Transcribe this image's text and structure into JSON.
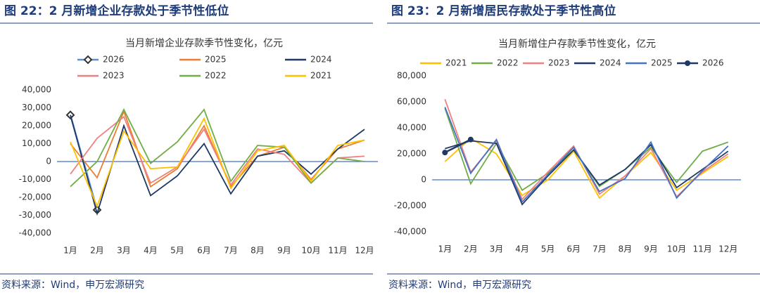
{
  "chart_data": [
    {
      "type": "line",
      "heading": "图 22：2 月新增企业存款处于季节性低位",
      "title": "当月新增企业存款季节性变化，亿元",
      "source": "资料来源：Wind，申万宏源研究",
      "categories": [
        "1月",
        "2月",
        "3月",
        "4月",
        "5月",
        "6月",
        "7月",
        "8月",
        "9月",
        "10月",
        "11月",
        "12月"
      ],
      "ylim": [
        -40000,
        40000
      ],
      "yticks": [
        {
          "value": -40000,
          "label": "-40,000"
        },
        {
          "value": -30000,
          "label": "-30,000"
        },
        {
          "value": -20000,
          "label": "-20,000"
        },
        {
          "value": -10000,
          "label": "-10,000"
        },
        0,
        {
          "value": 10000,
          "label": "10,000"
        },
        {
          "value": 20000,
          "label": "20,000"
        },
        {
          "value": 30000,
          "label": "30,000"
        },
        {
          "value": 40000,
          "label": "40,000"
        }
      ],
      "grid": false,
      "legend": "top",
      "series": [
        {
          "name": "2026",
          "color": "#5b8fd0",
          "marker": "diamond",
          "values": [
            26000,
            -27000,
            null,
            null,
            null,
            null,
            null,
            null,
            null,
            null,
            null,
            null
          ]
        },
        {
          "name": "2025",
          "color": "#ed7d31",
          "values": [
            10000,
            -9000,
            28000,
            -14000,
            -4000,
            20000,
            -14000,
            3000,
            8000,
            -10000,
            7000,
            12000
          ]
        },
        {
          "name": "2024",
          "color": "#1f3864",
          "values": [
            26000,
            -29000,
            20000,
            -19000,
            -8000,
            10000,
            -18000,
            3000,
            6000,
            -7000,
            7000,
            18000
          ]
        },
        {
          "name": "2023",
          "color": "#f08080",
          "values": [
            -7000,
            13000,
            25000,
            -12000,
            -3000,
            18000,
            -13000,
            7000,
            4000,
            -12000,
            2000,
            3000
          ]
        },
        {
          "name": "2022",
          "color": "#70ad47",
          "values": [
            -14000,
            0,
            29000,
            -1000,
            11000,
            29000,
            -11000,
            9000,
            8000,
            -12000,
            2000,
            0
          ]
        },
        {
          "name": "2021",
          "color": "#ffc000",
          "values": [
            11000,
            -25000,
            17000,
            -4000,
            -3000,
            24000,
            -15000,
            6000,
            9000,
            -11000,
            9000,
            12000
          ]
        }
      ]
    },
    {
      "type": "line",
      "heading": "图 23：2 月新增居民存款处于季节性高位",
      "title": "当月新增住户存款季节性变化，亿元",
      "source": "资料来源：Wind，申万宏源研究",
      "categories": [
        "1月",
        "2月",
        "3月",
        "4月",
        "5月",
        "6月",
        "7月",
        "8月",
        "9月",
        "10月",
        "11月",
        "12月"
      ],
      "ylim": [
        -40000,
        80000
      ],
      "yticks": [
        {
          "value": -40000,
          "label": "-40,000"
        },
        {
          "value": -20000,
          "label": "-20,000"
        },
        0,
        {
          "value": 20000,
          "label": "20,000"
        },
        {
          "value": 40000,
          "label": "40,000"
        },
        {
          "value": 60000,
          "label": "60,000"
        },
        {
          "value": 80000,
          "label": "80,000"
        }
      ],
      "grid": false,
      "legend": "top",
      "series": [
        {
          "name": "2021",
          "color": "#ffc000",
          "values": [
            14000,
            32000,
            20000,
            -12000,
            0,
            22000,
            -14000,
            3000,
            21000,
            -8000,
            5000,
            18000
          ]
        },
        {
          "name": "2022",
          "color": "#70ad47",
          "values": [
            55000,
            -3000,
            28000,
            -8000,
            5000,
            23000,
            -5000,
            8000,
            25000,
            -2000,
            22000,
            29000
          ]
        },
        {
          "name": "2023",
          "color": "#f08080",
          "values": [
            62000,
            6000,
            30000,
            -15000,
            6000,
            26000,
            -11000,
            3000,
            24000,
            -13000,
            6000,
            20000
          ]
        },
        {
          "name": "2024",
          "color": "#1f3864",
          "values": [
            24000,
            30000,
            28000,
            -19000,
            3000,
            23000,
            -4000,
            8000,
            27000,
            -6000,
            8000,
            22000
          ]
        },
        {
          "name": "2025",
          "color": "#4472c4",
          "values": [
            56000,
            5000,
            31000,
            -17000,
            4000,
            25000,
            -9000,
            1000,
            29000,
            -14000,
            7000,
            26000
          ]
        },
        {
          "name": "2026",
          "color": "#1f3864",
          "marker": "circle",
          "values": [
            21000,
            31000,
            null,
            null,
            null,
            null,
            null,
            null,
            null,
            null,
            null,
            null
          ]
        }
      ]
    }
  ]
}
